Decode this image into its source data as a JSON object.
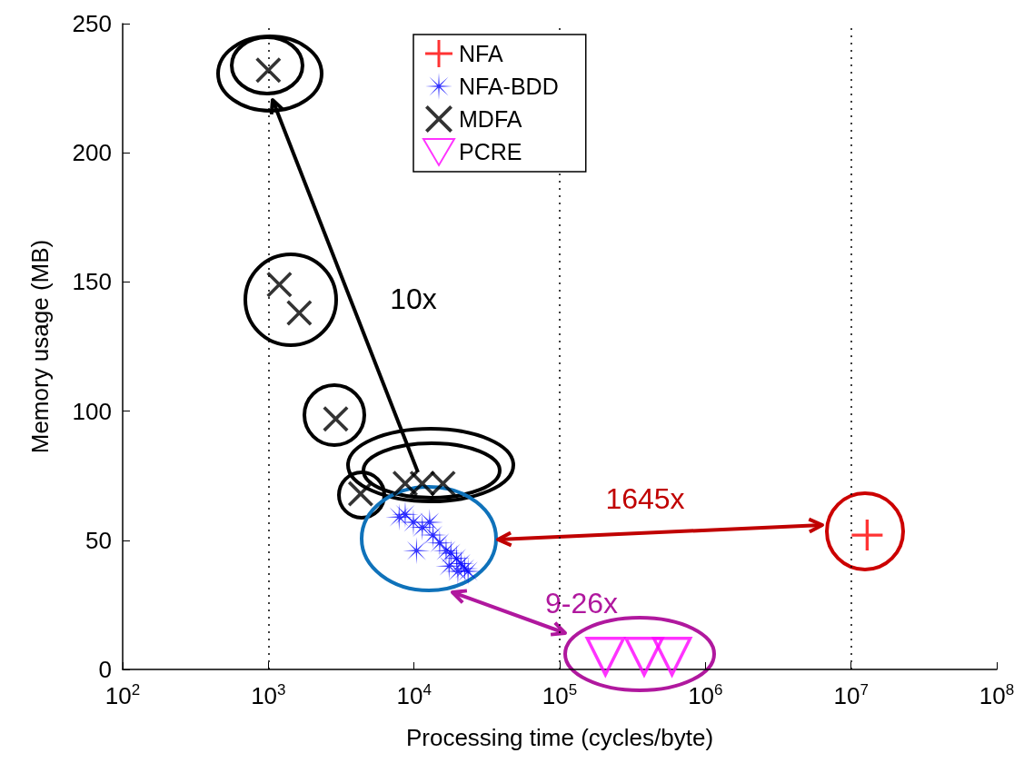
{
  "chart_data": {
    "type": "scatter",
    "xlabel": "Processing time (cycles/byte)",
    "ylabel": "Memory usage (MB)",
    "log": "x",
    "xlim": [
      100,
      100000000
    ],
    "ylim": [
      0,
      250
    ],
    "xticks": [
      {
        "value": 100,
        "label": "10$^{2}$"
      },
      {
        "value": 1000,
        "label": "10$^{3}$"
      },
      {
        "value": 10000,
        "label": "10$^{4}$"
      },
      {
        "value": 100000,
        "label": "10$^{5}$"
      },
      {
        "value": 1000000,
        "label": "10$^{6}$"
      },
      {
        "value": 10000000,
        "label": "10$^{7}$"
      },
      {
        "value": 100000000,
        "label": "10$^{8}$"
      }
    ],
    "yticks": [
      0,
      50,
      100,
      150,
      200,
      250
    ],
    "legend": "top",
    "grid": false,
    "ref_lines": [
      {
        "axis": "x",
        "value": 1000,
        "line_style": "dotted",
        "color": "#000000"
      },
      {
        "axis": "x",
        "value": 100000,
        "line_style": "dotted",
        "color": "#000000"
      },
      {
        "axis": "x",
        "value": 10000000,
        "line_style": "dotted",
        "color": "#000000"
      }
    ],
    "annotations": [
      "10x",
      "1645x",
      "9-26x"
    ],
    "series": [
      {
        "name": "NFA",
        "color": "#ff0000",
        "marker": "cross",
        "x": [
          12900000
        ],
        "values": [
          52
        ]
      },
      {
        "name": "NFA-BDD",
        "color": "#0000ff",
        "marker": "star",
        "x": [
          7900,
          8700,
          9900,
          11400,
          12800,
          10400,
          13500,
          15000,
          16600,
          17900,
          19600,
          21000,
          22300,
          23500,
          20000,
          17400
        ],
        "values": [
          59,
          60,
          57,
          55,
          57,
          46,
          52,
          49,
          46,
          45,
          43,
          41,
          39,
          38,
          38,
          40
        ]
      },
      {
        "name": "MDFA",
        "color": "#000000",
        "marker": "cross",
        "x": [
          1000,
          1190,
          1630,
          2900,
          4300,
          8700,
          11400,
          15800
        ],
        "values": [
          232,
          149,
          138,
          97,
          68,
          72,
          72,
          72
        ]
      },
      {
        "name": "PCRE",
        "color": "#ff00ff",
        "marker": "triangle",
        "x": [
          206000,
          380000,
          590000
        ],
        "values": [
          5,
          5,
          5
        ]
      }
    ]
  }
}
